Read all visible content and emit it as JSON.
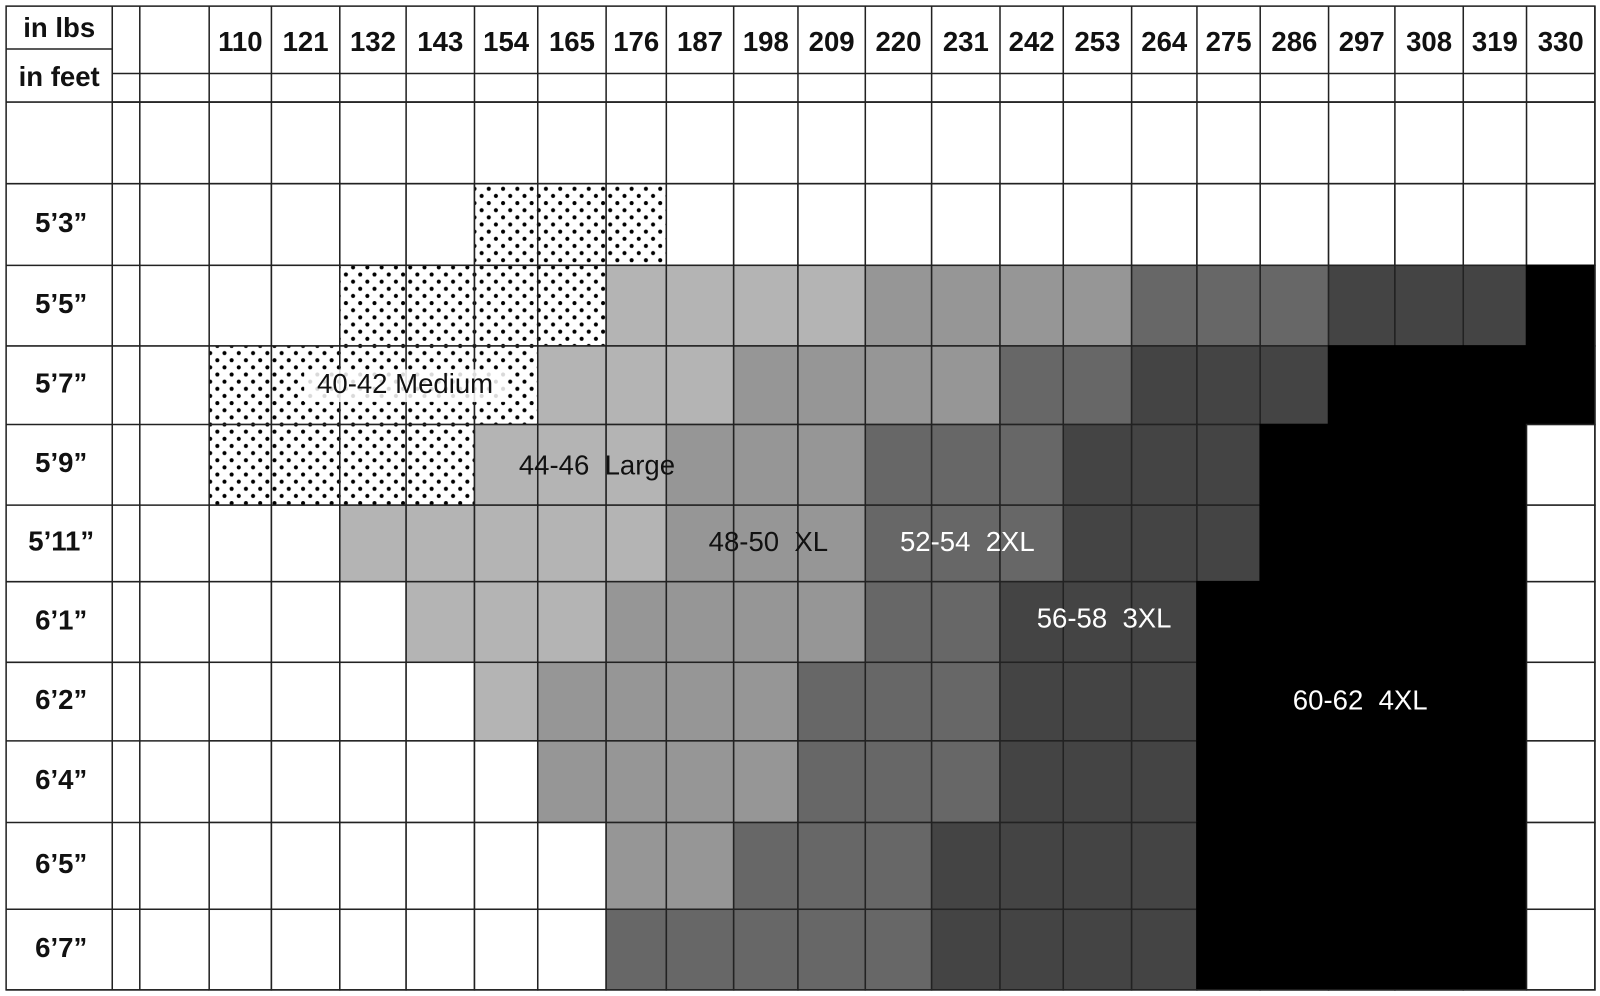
{
  "header": {
    "weight_label": "in lbs",
    "height_label": "in feet"
  },
  "weights": [
    110,
    121,
    132,
    143,
    154,
    165,
    176,
    187,
    198,
    209,
    220,
    231,
    242,
    253,
    264,
    275,
    286,
    297,
    308,
    319,
    330
  ],
  "heights": [
    "5’3”",
    "5’5”",
    "5’7”",
    "5’9”",
    "5’11”",
    "6’1”",
    "6’2”",
    "6’4”",
    "6’5”",
    "6’7”"
  ],
  "sizes": [
    "40-42 Medium",
    "44-46  Large",
    "48-50  XL",
    "52-54  2XL",
    "56-58  3XL",
    "60-62  4XL"
  ]
}
